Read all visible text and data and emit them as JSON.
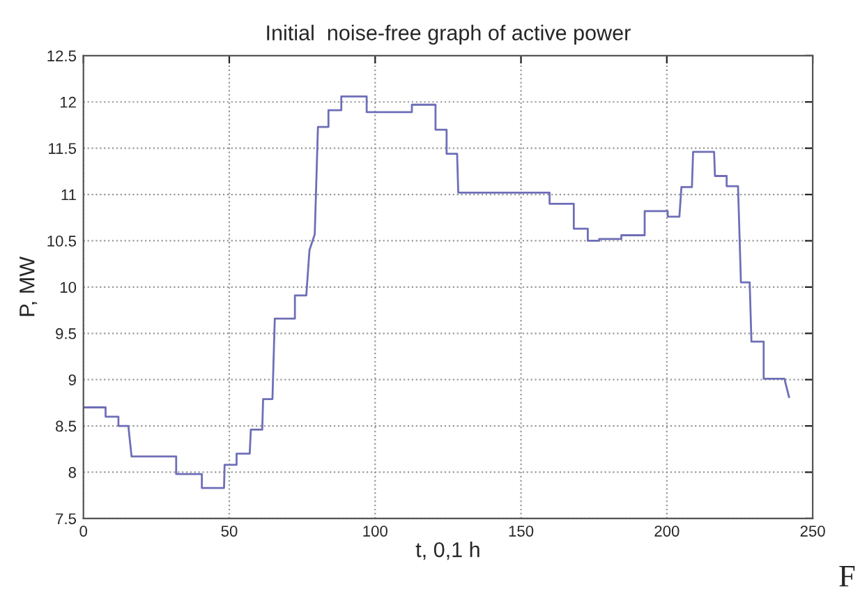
{
  "chart_data": {
    "type": "line",
    "title": "Initial  noise-free graph of active power",
    "xlabel": "t, 0,1 h",
    "ylabel": "P, MW",
    "xlim": [
      0,
      250
    ],
    "xticks": [
      0,
      50,
      100,
      150,
      200,
      250
    ],
    "ylim": [
      7.5,
      12.5
    ],
    "yticks": [
      7.5,
      8,
      8.5,
      9,
      9.5,
      10,
      10.5,
      11,
      11.5,
      12,
      12.5
    ],
    "grid": true,
    "line_style": "solid",
    "annotations": [
      "F"
    ],
    "x": [
      0,
      7.6,
      7.6,
      12,
      12,
      15.4,
      16.5,
      31.8,
      31.8,
      40.6,
      40.6,
      48.2,
      48.4,
      52.5,
      52.5,
      57,
      57.4,
      61.3,
      61.6,
      64.8,
      65.6,
      72.5,
      72.5,
      76.4,
      77.5,
      79.3,
      80.4,
      84,
      84,
      88.4,
      88.4,
      97.1,
      97.1,
      112.6,
      112.6,
      120.7,
      120.7,
      124.5,
      124.5,
      128.1,
      128.5,
      159.8,
      159.8,
      168.1,
      168.1,
      172.9,
      172.9,
      176.8,
      176.8,
      184.4,
      184.4,
      192.4,
      192.4,
      200.3,
      200.3,
      204.3,
      205,
      208.6,
      209,
      216.2,
      216.5,
      220.5,
      220.5,
      224.4,
      225.4,
      228.4,
      229,
      233.2,
      233.2,
      240.3,
      241.9
    ],
    "series": [
      {
        "color": "#6e6eb8",
        "values": [
          8.7,
          8.7,
          8.6,
          8.6,
          8.5,
          8.5,
          8.17,
          8.17,
          7.98,
          7.98,
          7.83,
          7.83,
          8.08,
          8.08,
          8.2,
          8.2,
          8.46,
          8.46,
          8.79,
          8.79,
          9.66,
          9.66,
          9.91,
          9.91,
          10.4,
          10.57,
          11.73,
          11.73,
          11.91,
          11.91,
          12.06,
          12.06,
          11.89,
          11.89,
          11.97,
          11.97,
          11.7,
          11.7,
          11.44,
          11.44,
          11.02,
          11.02,
          10.9,
          10.9,
          10.63,
          10.63,
          10.5,
          10.5,
          10.52,
          10.52,
          10.56,
          10.56,
          10.82,
          10.82,
          10.76,
          10.76,
          11.08,
          11.08,
          11.46,
          11.46,
          11.2,
          11.2,
          11.09,
          11.09,
          10.05,
          10.05,
          9.41,
          9.41,
          9.01,
          9.01,
          8.81
        ]
      }
    ]
  }
}
